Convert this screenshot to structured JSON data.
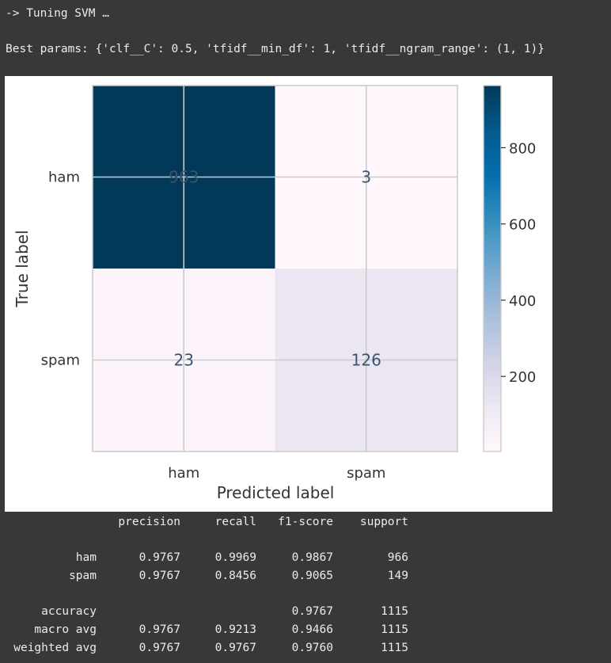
{
  "console": {
    "tuning_line": "-> Tuning SVM …",
    "best_params_line": "Best params: {'clf__C': 0.5, 'tfidf__min_df': 1, 'tfidf__ngram_range': (1, 1)}"
  },
  "chart_data": {
    "type": "heatmap",
    "title": "",
    "xlabel": "Predicted label",
    "ylabel": "True label",
    "x_categories": [
      "ham",
      "spam"
    ],
    "y_categories": [
      "ham",
      "spam"
    ],
    "values": [
      [
        963,
        3
      ],
      [
        23,
        126
      ]
    ],
    "colorbar": {
      "ticks": [
        200,
        400,
        600,
        800
      ],
      "range": [
        3,
        963
      ]
    },
    "colormap": "PuBu",
    "grid": true
  },
  "report": {
    "headers": [
      "precision",
      "recall",
      "f1-score",
      "support"
    ],
    "rows": [
      {
        "label": "ham",
        "precision": "0.9767",
        "recall": "0.9969",
        "f1": "0.9867",
        "support": "966"
      },
      {
        "label": "spam",
        "precision": "0.9767",
        "recall": "0.8456",
        "f1": "0.9065",
        "support": "149"
      },
      {
        "label": "accuracy",
        "precision": "",
        "recall": "",
        "f1": "0.9767",
        "support": "1115"
      },
      {
        "label": "macro avg",
        "precision": "0.9767",
        "recall": "0.9213",
        "f1": "0.9466",
        "support": "1115"
      },
      {
        "label": "weighted avg",
        "precision": "0.9767",
        "recall": "0.9767",
        "f1": "0.9760",
        "support": "1115"
      }
    ]
  },
  "colors": {
    "console_bg": "#383838",
    "console_text": "#ececec",
    "cell_text_dark": "#3a5572",
    "cell_text_light": "#ffffff"
  }
}
